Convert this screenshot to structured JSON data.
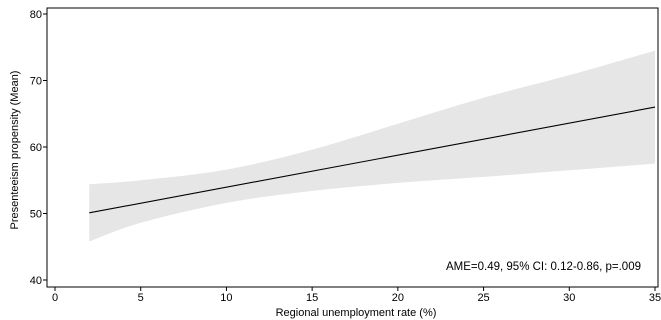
{
  "chart_data": {
    "type": "line",
    "xlabel": "Regional unemployment rate (%)",
    "ylabel": "Presenteeism propensity (Mean)",
    "xlim": [
      0,
      35
    ],
    "ylim": [
      40,
      80
    ],
    "x_ticks": [
      "0",
      "5",
      "10",
      "15",
      "20",
      "25",
      "30",
      "35"
    ],
    "y_ticks": [
      "40",
      "50",
      "60",
      "70",
      "80"
    ],
    "grid": false,
    "legend": "none",
    "annotation": "AME=0.49, 95% CI: 0.12-0.86, p=.009",
    "series": [
      {
        "x": [
          2,
          35
        ],
        "y": [
          50.1,
          66.0
        ],
        "ci_x": [
          2,
          5,
          10,
          15,
          20,
          25,
          30,
          35
        ],
        "ci_lower": [
          45.8,
          48.6,
          51.6,
          53.4,
          54.6,
          55.5,
          56.5,
          57.5
        ],
        "ci_upper": [
          54.4,
          55.0,
          56.6,
          59.6,
          63.5,
          67.4,
          70.8,
          74.5
        ]
      }
    ],
    "colors": {
      "line": "#000000",
      "ci_band": "#e6e6e6",
      "axis": "#000000"
    }
  }
}
